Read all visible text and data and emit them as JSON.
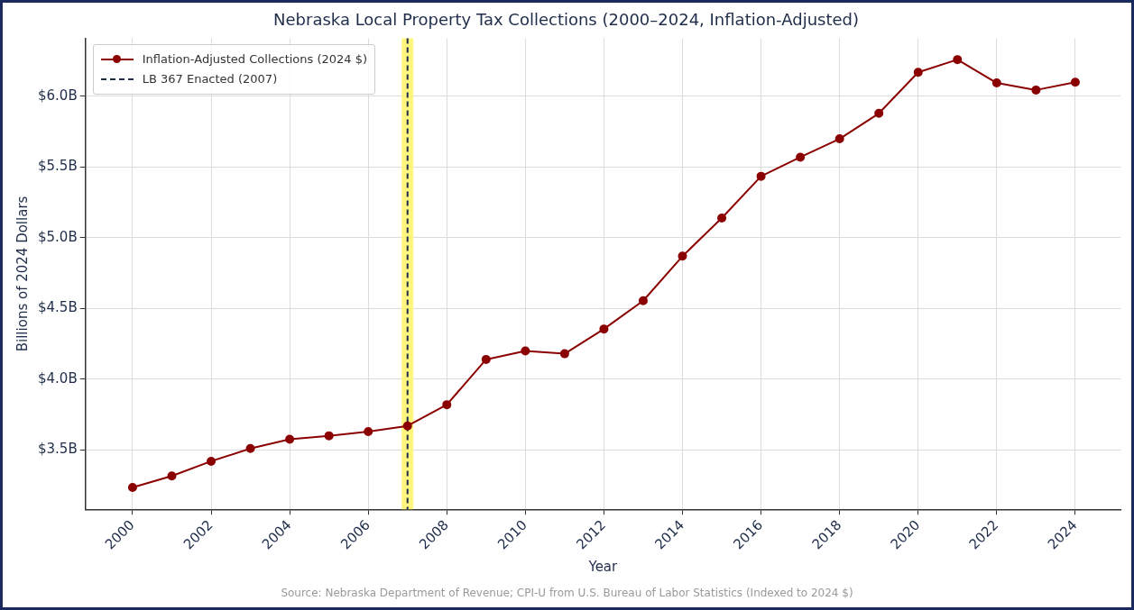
{
  "chart_data": {
    "type": "line",
    "title": "Nebraska Local Property Tax Collections (2000–2024, Inflation-Adjusted)",
    "xlabel": "Year",
    "ylabel": "Billions of 2024 Dollars",
    "x": [
      2000,
      2001,
      2002,
      2003,
      2004,
      2005,
      2006,
      2007,
      2008,
      2009,
      2010,
      2011,
      2012,
      2013,
      2014,
      2015,
      2016,
      2017,
      2018,
      2019,
      2020,
      2021,
      2022,
      2023,
      2024
    ],
    "series": [
      {
        "name": "Inflation-Adjusted Collections (2024 $)",
        "color": "#8b0000",
        "values": [
          3.235,
          3.316,
          3.42,
          3.51,
          3.575,
          3.6,
          3.63,
          3.67,
          3.82,
          4.14,
          4.2,
          4.18,
          4.355,
          4.555,
          4.87,
          5.14,
          5.435,
          5.57,
          5.7,
          5.88,
          6.17,
          6.26,
          6.095,
          6.045,
          6.1
        ]
      }
    ],
    "xlim": [
      1998.8,
      2025.15
    ],
    "xticks": [
      2000,
      2002,
      2004,
      2006,
      2008,
      2010,
      2012,
      2014,
      2016,
      2018,
      2020,
      2022,
      2024
    ],
    "ylim": [
      3.08,
      6.41
    ],
    "yticks": [
      {
        "value": 3.5,
        "label": "$3.5B"
      },
      {
        "value": 4.0,
        "label": "$4.0B"
      },
      {
        "value": 4.5,
        "label": "$4.5B"
      },
      {
        "value": 5.0,
        "label": "$5.0B"
      },
      {
        "value": 5.5,
        "label": "$5.5B"
      },
      {
        "value": 6.0,
        "label": "$6.0B"
      }
    ],
    "ref_lines": [
      {
        "axis": "x",
        "value": 2007,
        "label": "LB 367 Enacted (2007)",
        "color": "#1f2d4a",
        "line_style": "dashed"
      }
    ],
    "bands": [
      {
        "axis": "x",
        "from": 2006.85,
        "to": 2007.15,
        "color": "#fff56a"
      }
    ],
    "annotations": [
      "Source: Nebraska Department of Revenue; CPI-U from U.S. Bureau of Labor Statistics (Indexed to 2024 $)"
    ],
    "grid": true,
    "legend": "top left",
    "marker": "circle",
    "line_style": "solid"
  }
}
